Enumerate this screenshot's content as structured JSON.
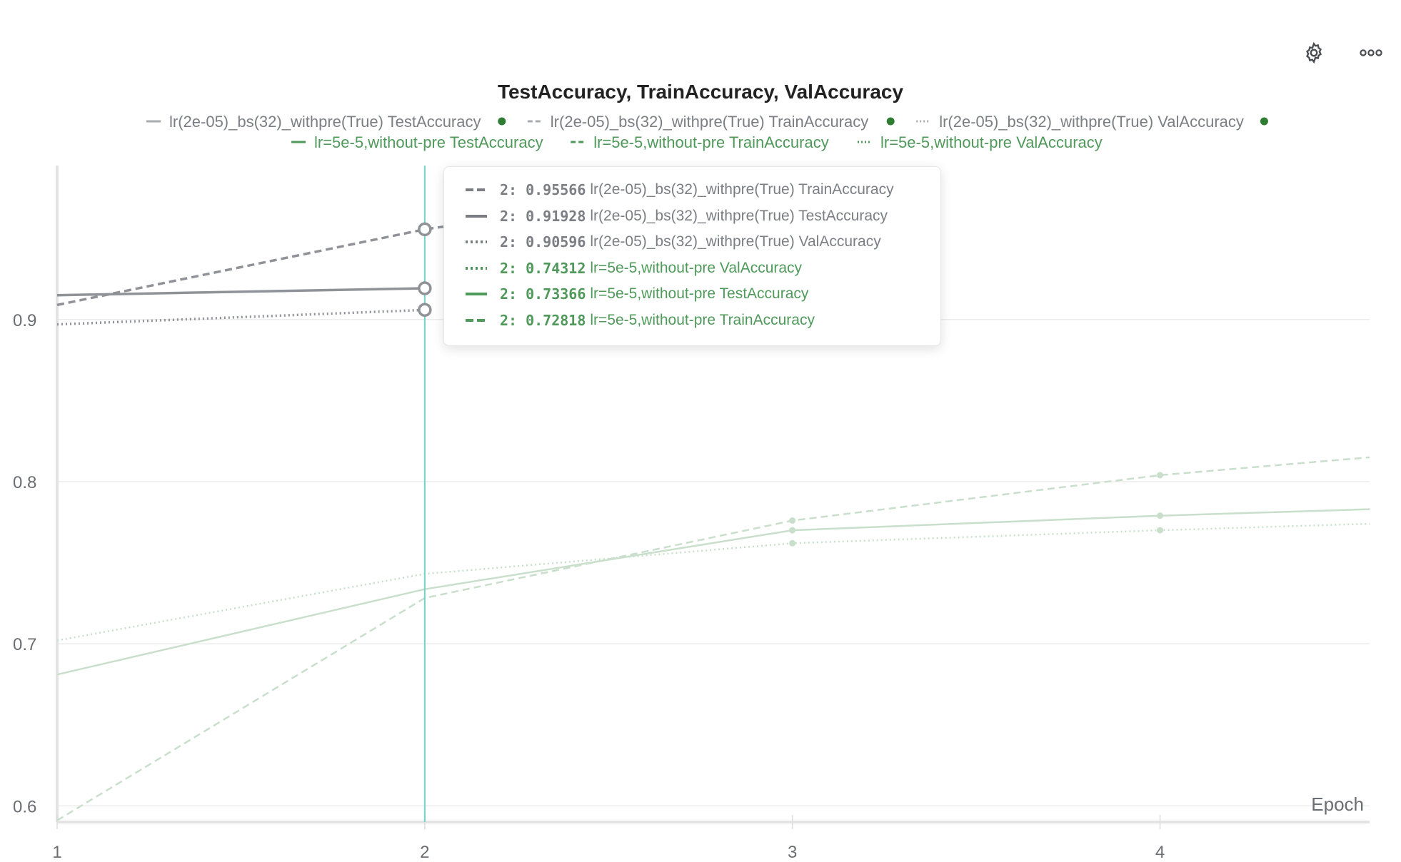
{
  "toolbar": {
    "settings_icon": "gear-icon",
    "more_icon": "more-horizontal-icon"
  },
  "colors": {
    "gray": "#8f9297",
    "gray_light": "#a9abaf",
    "green": "#4f9a5a",
    "green_faded": "#c9dfcc",
    "green_dot": "#2e7d32",
    "cursor_line": "#6fd3cb",
    "grid": "#ececec",
    "tick_text": "#6b6e73",
    "title_text": "#222222"
  },
  "chart_data": {
    "type": "line",
    "title": "TestAccuracy, TrainAccuracy, ValAccuracy",
    "xlabel": "Epoch",
    "ylabel": "",
    "xlim": [
      1,
      4.57
    ],
    "ylim": [
      0.59,
      0.995
    ],
    "xticks": [
      1,
      2,
      3,
      4
    ],
    "yticks": [
      0.6,
      0.7,
      0.8,
      0.9
    ],
    "ytick_labels": [
      "0.6",
      "0.7",
      "0.8",
      "0.9"
    ],
    "grid": true,
    "legend_position": "top",
    "series": [
      {
        "name": "lr(2e-05)_bs(32)_withpre(True) TestAccuracy",
        "style": "solid",
        "color": "gray",
        "x": [
          1,
          2
        ],
        "y": [
          0.915,
          0.91928
        ],
        "legend_dot": true
      },
      {
        "name": "lr(2e-05)_bs(32)_withpre(True) TrainAccuracy",
        "style": "dashed",
        "color": "gray",
        "x": [
          1,
          2,
          3
        ],
        "y": [
          0.909,
          0.95566,
          0.988
        ],
        "legend_dot": true
      },
      {
        "name": "lr(2e-05)_bs(32)_withpre(True) ValAccuracy",
        "style": "dotted",
        "color": "gray",
        "x": [
          1,
          2
        ],
        "y": [
          0.897,
          0.90596
        ],
        "legend_dot": true
      },
      {
        "name": "lr=5e-5,without-pre TestAccuracy",
        "style": "solid",
        "color": "green",
        "x": [
          1,
          2,
          3,
          4,
          4.57
        ],
        "y": [
          0.681,
          0.73366,
          0.77,
          0.779,
          0.783
        ],
        "legend_dot": false
      },
      {
        "name": "lr=5e-5,without-pre TrainAccuracy",
        "style": "dashed",
        "color": "green",
        "x": [
          1,
          2,
          3,
          4,
          4.57
        ],
        "y": [
          0.591,
          0.72818,
          0.776,
          0.804,
          0.815
        ],
        "legend_dot": false
      },
      {
        "name": "lr=5e-5,without-pre ValAccuracy",
        "style": "dotted",
        "color": "green",
        "x": [
          1,
          2,
          3,
          4,
          4.57
        ],
        "y": [
          0.702,
          0.74312,
          0.762,
          0.77,
          0.774
        ],
        "legend_dot": false
      }
    ],
    "cursor_x": 2,
    "tooltip": {
      "rows": [
        {
          "step": "2",
          "value": "0.95566",
          "name": "lr(2e-05)_bs(32)_withpre(True) TrainAccuracy",
          "style": "dashed",
          "color": "gray"
        },
        {
          "step": "2",
          "value": "0.91928",
          "name": "lr(2e-05)_bs(32)_withpre(True) TestAccuracy",
          "style": "solid",
          "color": "gray"
        },
        {
          "step": "2",
          "value": "0.90596",
          "name": "lr(2e-05)_bs(32)_withpre(True) ValAccuracy",
          "style": "dotted",
          "color": "gray"
        },
        {
          "step": "2",
          "value": "0.74312",
          "name": "lr=5e-5,without-pre ValAccuracy",
          "style": "dotted",
          "color": "green"
        },
        {
          "step": "2",
          "value": "0.73366",
          "name": "lr=5e-5,without-pre TestAccuracy",
          "style": "solid",
          "color": "green"
        },
        {
          "step": "2",
          "value": "0.72818",
          "name": "lr=5e-5,without-pre TrainAccuracy",
          "style": "dashed",
          "color": "green"
        }
      ]
    }
  }
}
